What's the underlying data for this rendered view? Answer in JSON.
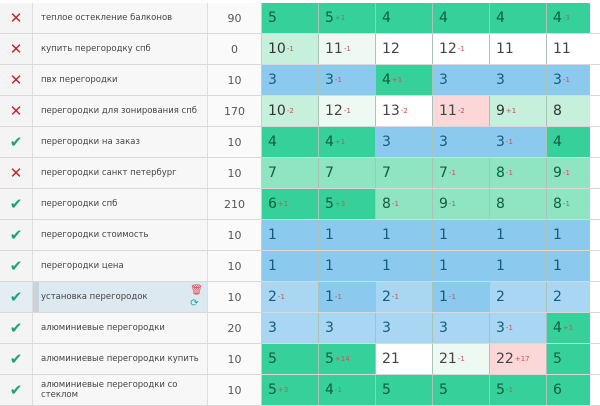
{
  "colors": {
    "dark_green": "#36d19b",
    "mid_green": "#8fe5c1",
    "light_green": "#c6efdc",
    "blue": "#8cc9ee",
    "light_blue": "#a9d6f2",
    "pink": "#fcd7d7"
  },
  "rows": [
    {
      "status": "x",
      "keyword": "теплое остекление балконов",
      "freq": "90",
      "cells": [
        [
          "5",
          "",
          "d"
        ],
        [
          "5",
          "+1",
          "d"
        ],
        [
          "4",
          "",
          "d"
        ],
        [
          "4",
          "",
          "d"
        ],
        [
          "4",
          "",
          "d"
        ],
        [
          "4",
          "-3",
          "d"
        ]
      ]
    },
    {
      "status": "x",
      "keyword": "купить перегородку спб",
      "freq": "0",
      "cells": [
        [
          "10",
          "-1",
          "lg"
        ],
        [
          "11",
          "-1",
          "vlg"
        ],
        [
          "12",
          "",
          "w"
        ],
        [
          "12",
          "-1",
          "w"
        ],
        [
          "11",
          "",
          "w"
        ],
        [
          "11",
          "",
          "w"
        ]
      ]
    },
    {
      "status": "x",
      "keyword": "пвх перегородки",
      "freq": "10",
      "cells": [
        [
          "3",
          "",
          "b"
        ],
        [
          "3",
          "-1",
          "b"
        ],
        [
          "4",
          "+1",
          "d"
        ],
        [
          "3",
          "",
          "b"
        ],
        [
          "3",
          "",
          "b"
        ],
        [
          "3",
          "-1",
          "b"
        ]
      ]
    },
    {
      "status": "x",
      "keyword": "перегородки для зонирования спб",
      "freq": "170",
      "cells": [
        [
          "10",
          "-2",
          "lg"
        ],
        [
          "12",
          "-1",
          "vlg"
        ],
        [
          "13",
          "-2",
          "w"
        ],
        [
          "11",
          "-2",
          "p"
        ],
        [
          "9",
          "+1",
          "lg"
        ],
        [
          "8",
          "",
          "lg"
        ]
      ]
    },
    {
      "status": "ok",
      "keyword": "перегородки на заказ",
      "freq": "10",
      "cells": [
        [
          "4",
          "",
          "d"
        ],
        [
          "4",
          "+1",
          "d"
        ],
        [
          "3",
          "",
          "b"
        ],
        [
          "3",
          "",
          "b"
        ],
        [
          "3",
          "-1",
          "b"
        ],
        [
          "4",
          "",
          "d"
        ]
      ]
    },
    {
      "status": "x",
      "keyword": "перегородки санкт петербург",
      "freq": "10",
      "cells": [
        [
          "7",
          "",
          "m"
        ],
        [
          "7",
          "",
          "m"
        ],
        [
          "7",
          "",
          "m"
        ],
        [
          "7",
          "-1",
          "m"
        ],
        [
          "8",
          "-1",
          "m"
        ],
        [
          "9",
          "-1",
          "m"
        ]
      ]
    },
    {
      "status": "ok",
      "keyword": "перегородки спб",
      "freq": "210",
      "cells": [
        [
          "6",
          "+1",
          "d"
        ],
        [
          "5",
          "+3",
          "d"
        ],
        [
          "8",
          "-1",
          "m"
        ],
        [
          "9",
          "-1",
          "m"
        ],
        [
          "8",
          "",
          "m"
        ],
        [
          "8",
          "-1",
          "m"
        ]
      ]
    },
    {
      "status": "ok",
      "keyword": "перегородки стоимость",
      "freq": "10",
      "cells": [
        [
          "1",
          "",
          "b"
        ],
        [
          "1",
          "",
          "b"
        ],
        [
          "1",
          "",
          "b"
        ],
        [
          "1",
          "",
          "b"
        ],
        [
          "1",
          "",
          "b"
        ],
        [
          "1",
          "",
          "b"
        ]
      ]
    },
    {
      "status": "ok",
      "keyword": "перегородки цена",
      "freq": "10",
      "cells": [
        [
          "1",
          "",
          "b"
        ],
        [
          "1",
          "",
          "b"
        ],
        [
          "1",
          "",
          "b"
        ],
        [
          "1",
          "",
          "b"
        ],
        [
          "1",
          "",
          "b"
        ],
        [
          "1",
          "",
          "b"
        ]
      ]
    },
    {
      "status": "ok",
      "keyword": "установка перегородок",
      "freq": "10",
      "selected": true,
      "cells": [
        [
          "2",
          "-1",
          "lb"
        ],
        [
          "1",
          "-1",
          "b"
        ],
        [
          "2",
          "-1",
          "lb"
        ],
        [
          "1",
          "-1",
          "b"
        ],
        [
          "2",
          "",
          "lb"
        ],
        [
          "2",
          "",
          "lb"
        ]
      ]
    },
    {
      "status": "ok",
      "keyword": "алюминиевые перегородки",
      "freq": "20",
      "cells": [
        [
          "3",
          "",
          "lb"
        ],
        [
          "3",
          "",
          "lb"
        ],
        [
          "3",
          "",
          "lb"
        ],
        [
          "3",
          "",
          "lb"
        ],
        [
          "3",
          "-1",
          "lb"
        ],
        [
          "4",
          "+1",
          "d"
        ]
      ]
    },
    {
      "status": "ok",
      "keyword": "алюминиевые перегородки купить",
      "freq": "10",
      "cells": [
        [
          "5",
          "",
          "d"
        ],
        [
          "5",
          "+14",
          "d"
        ],
        [
          "21",
          "",
          "w"
        ],
        [
          "21",
          "-1",
          "vlg"
        ],
        [
          "22",
          "+17",
          "p"
        ],
        [
          "5",
          "",
          "d"
        ]
      ]
    },
    {
      "status": "ok",
      "keyword": "алюминиевые перегородки со стеклом",
      "freq": "10",
      "cells": [
        [
          "5",
          "+3",
          "d"
        ],
        [
          "4",
          "-1",
          "d"
        ],
        [
          "5",
          "",
          "d"
        ],
        [
          "5",
          "",
          "d"
        ],
        [
          "5",
          "-1",
          "d"
        ],
        [
          "6",
          "",
          "d"
        ]
      ]
    }
  ],
  "icons": {
    "x": "close-icon",
    "ok": "check-icon",
    "delete": "trash-icon",
    "refresh": "refresh-icon"
  }
}
